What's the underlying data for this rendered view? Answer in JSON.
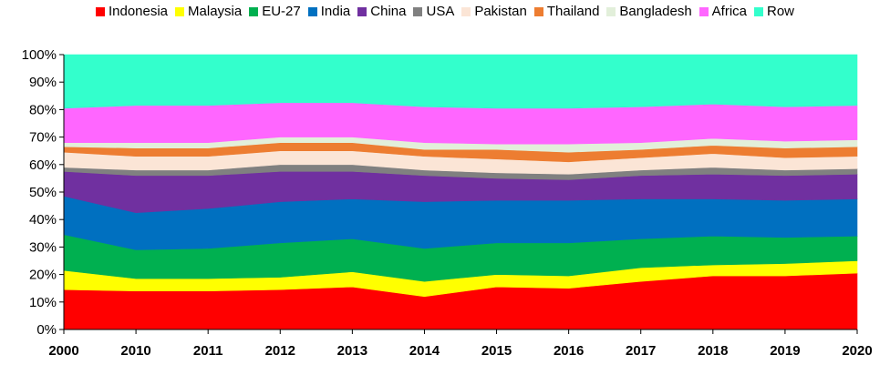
{
  "chart_data": {
    "type": "area",
    "stacked": true,
    "percent": true,
    "categories": [
      "2000",
      "2010",
      "2011",
      "2012",
      "2013",
      "2014",
      "2015",
      "2016",
      "2017",
      "2018",
      "2019",
      "2020"
    ],
    "y_ticks": [
      "0%",
      "10%",
      "20%",
      "30%",
      "40%",
      "50%",
      "60%",
      "70%",
      "80%",
      "90%",
      "100%"
    ],
    "ylim": [
      0,
      100
    ],
    "grid": false,
    "legend_position": "top",
    "series": [
      {
        "name": "Indonesia",
        "color": "#ff0000",
        "values": [
          14.5,
          14.0,
          14.0,
          14.5,
          15.5,
          12.0,
          15.5,
          15.0,
          17.5,
          19.5,
          19.5,
          20.5
        ]
      },
      {
        "name": "Malaysia",
        "color": "#ffff00",
        "values": [
          7.0,
          4.5,
          4.5,
          4.5,
          5.5,
          5.5,
          4.5,
          4.5,
          5.0,
          4.0,
          4.5,
          4.5
        ]
      },
      {
        "name": "EU-27",
        "color": "#00b050",
        "values": [
          13.0,
          10.5,
          11.0,
          12.5,
          12.0,
          12.0,
          11.5,
          12.0,
          10.5,
          10.5,
          9.5,
          9.0
        ]
      },
      {
        "name": "India",
        "color": "#0070c0",
        "values": [
          14.0,
          13.5,
          14.5,
          15.0,
          14.5,
          17.0,
          15.5,
          15.5,
          14.5,
          13.5,
          13.5,
          13.5
        ]
      },
      {
        "name": "China",
        "color": "#7030a0",
        "values": [
          9.0,
          13.5,
          12.0,
          11.0,
          10.0,
          9.5,
          8.0,
          7.5,
          8.5,
          9.0,
          9.0,
          9.0
        ]
      },
      {
        "name": "USA",
        "color": "#808080",
        "values": [
          1.5,
          2.0,
          2.0,
          2.5,
          2.5,
          2.0,
          2.0,
          2.0,
          2.0,
          2.5,
          2.0,
          2.0
        ]
      },
      {
        "name": "Pakistan",
        "color": "#fbe5d6",
        "values": [
          5.5,
          5.0,
          5.0,
          5.0,
          5.0,
          5.0,
          5.0,
          4.5,
          4.5,
          5.0,
          4.5,
          4.5
        ]
      },
      {
        "name": "Thailand",
        "color": "#ed7d31",
        "values": [
          2.0,
          3.0,
          3.0,
          3.0,
          3.0,
          2.5,
          3.5,
          3.5,
          3.0,
          3.0,
          3.5,
          3.5
        ]
      },
      {
        "name": "Bangladesh",
        "color": "#e2efda",
        "values": [
          1.5,
          2.0,
          2.0,
          2.0,
          2.0,
          2.5,
          2.0,
          3.0,
          2.5,
          2.5,
          2.5,
          2.5
        ]
      },
      {
        "name": "Africa",
        "color": "#ff66ff",
        "values": [
          12.5,
          13.5,
          13.5,
          12.5,
          12.5,
          13.0,
          13.0,
          13.0,
          13.0,
          12.5,
          12.5,
          12.5
        ]
      },
      {
        "name": "Row",
        "color": "#33ffcc",
        "values": [
          19.5,
          18.5,
          18.5,
          17.5,
          17.5,
          19.0,
          19.5,
          19.5,
          19.0,
          18.0,
          19.0,
          18.5
        ]
      }
    ]
  }
}
